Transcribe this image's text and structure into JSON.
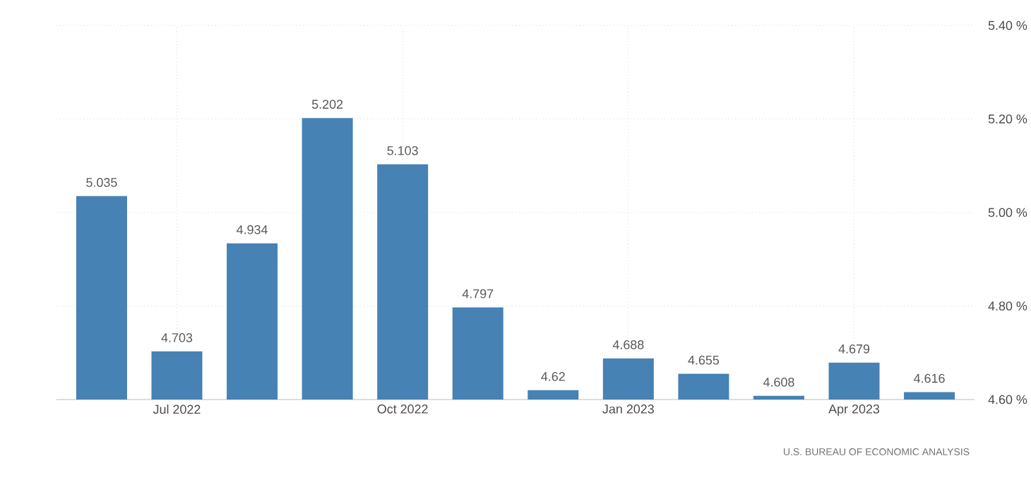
{
  "chart_data": {
    "type": "bar",
    "categories": [
      null,
      "Jul 2022",
      null,
      null,
      "Oct 2022",
      null,
      null,
      "Jan 2023",
      null,
      null,
      "Apr 2023",
      null
    ],
    "values": [
      5.035,
      4.703,
      4.934,
      5.202,
      5.103,
      4.797,
      4.62,
      4.688,
      4.655,
      4.608,
      4.679,
      4.616
    ],
    "color": "#4682b4",
    "ylim": [
      4.6,
      5.4
    ],
    "yticks": [
      {
        "value": 4.6,
        "label": "4.60 %"
      },
      {
        "value": 4.8,
        "label": "4.80 %"
      },
      {
        "value": 5.0,
        "label": "5.00 %"
      },
      {
        "value": 5.2,
        "label": "5.20 %"
      },
      {
        "value": 5.4,
        "label": "5.40 %"
      }
    ],
    "grid": true,
    "data_labels": true,
    "annotations": [
      "U.S. BUREAU OF ECONOMIC ANALYSIS"
    ]
  }
}
